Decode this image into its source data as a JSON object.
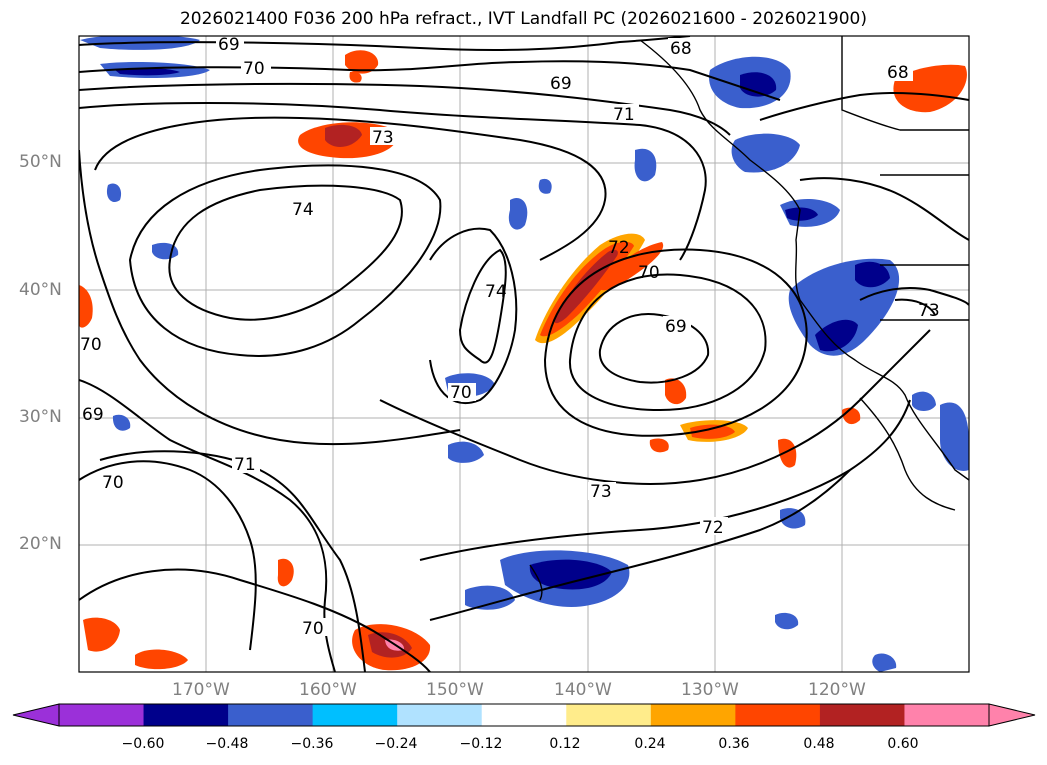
{
  "title": "2026021400 F036 200 hPa refract., IVT Landfall PC (2026021600 - 2026021900)",
  "map": {
    "lat_labels": [
      "50°N",
      "40°N",
      "30°N",
      "20°N"
    ],
    "lon_labels": [
      "170°W",
      "160°W",
      "150°W",
      "140°W",
      "130°W",
      "120°W"
    ],
    "contour_labels": [
      "69",
      "70",
      "68",
      "69",
      "71",
      "68",
      "73",
      "74",
      "74",
      "72",
      "70",
      "69",
      "73",
      "70",
      "69",
      "71",
      "70",
      "73",
      "72",
      "70",
      "70"
    ]
  },
  "colorbar": {
    "tick_labels": [
      "−0.60",
      "−0.48",
      "−0.36",
      "−0.24",
      "−0.12",
      "0.12",
      "0.24",
      "0.36",
      "0.48",
      "0.60"
    ],
    "colors": [
      "#9b30d9",
      "#00008b",
      "#3a5fcd",
      "#00bfff",
      "#b0e2ff",
      "#ffffff",
      "#ffec8b",
      "#ffa500",
      "#ff4500",
      "#b22222",
      "#ff82ab"
    ]
  }
}
